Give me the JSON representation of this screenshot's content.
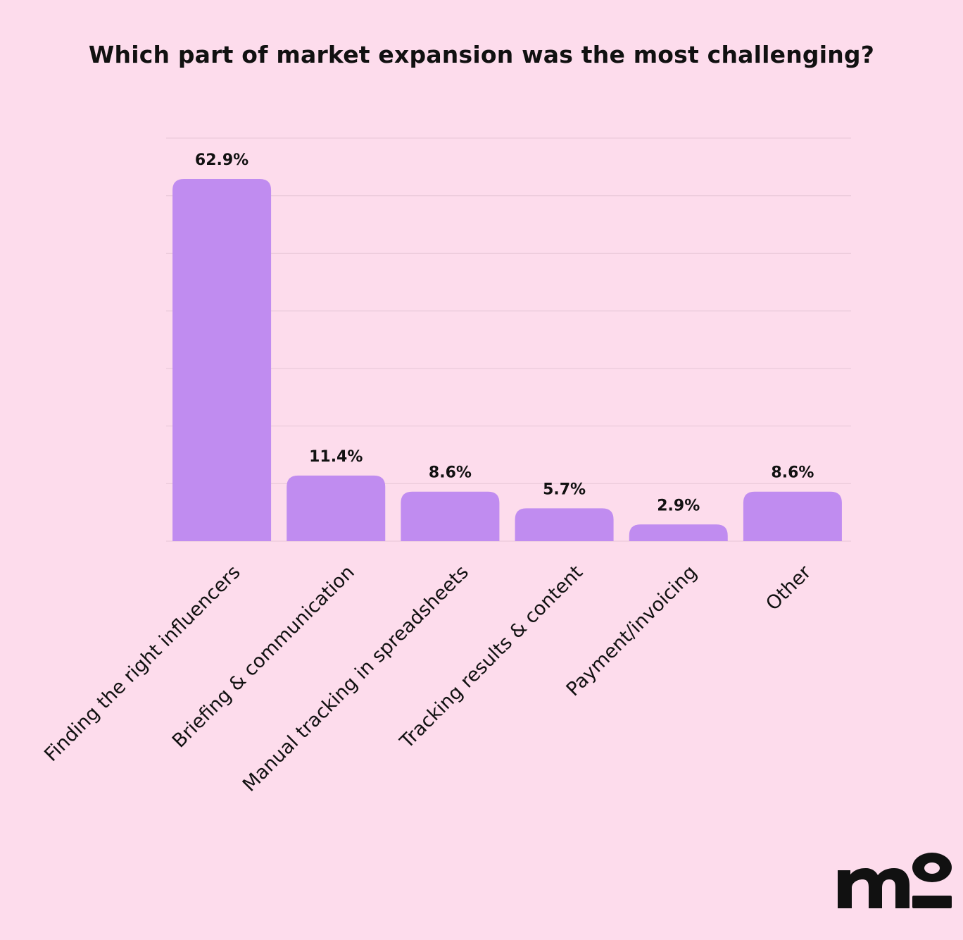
{
  "chart_data": {
    "type": "bar",
    "title": "Which part of market expansion was the most challenging?",
    "categories": [
      "Finding the right influencers",
      "Briefing & communication",
      "Manual tracking in spreadsheets",
      "Tracking results & content",
      "Payment/invoicing",
      "Other"
    ],
    "values": [
      62.9,
      11.4,
      8.6,
      5.7,
      2.9,
      8.6
    ],
    "value_labels": [
      "62.9%",
      "11.4%",
      "8.6%",
      "5.7%",
      "2.9%",
      "8.6%"
    ],
    "ylim": [
      0,
      70
    ],
    "grid": true,
    "bar_color": "#c08cf0",
    "grid_color": "#e6c6d6"
  },
  "logo": {
    "text": "mo",
    "color": "#111111"
  },
  "colors": {
    "background": "#fddcec",
    "text": "#111111"
  }
}
